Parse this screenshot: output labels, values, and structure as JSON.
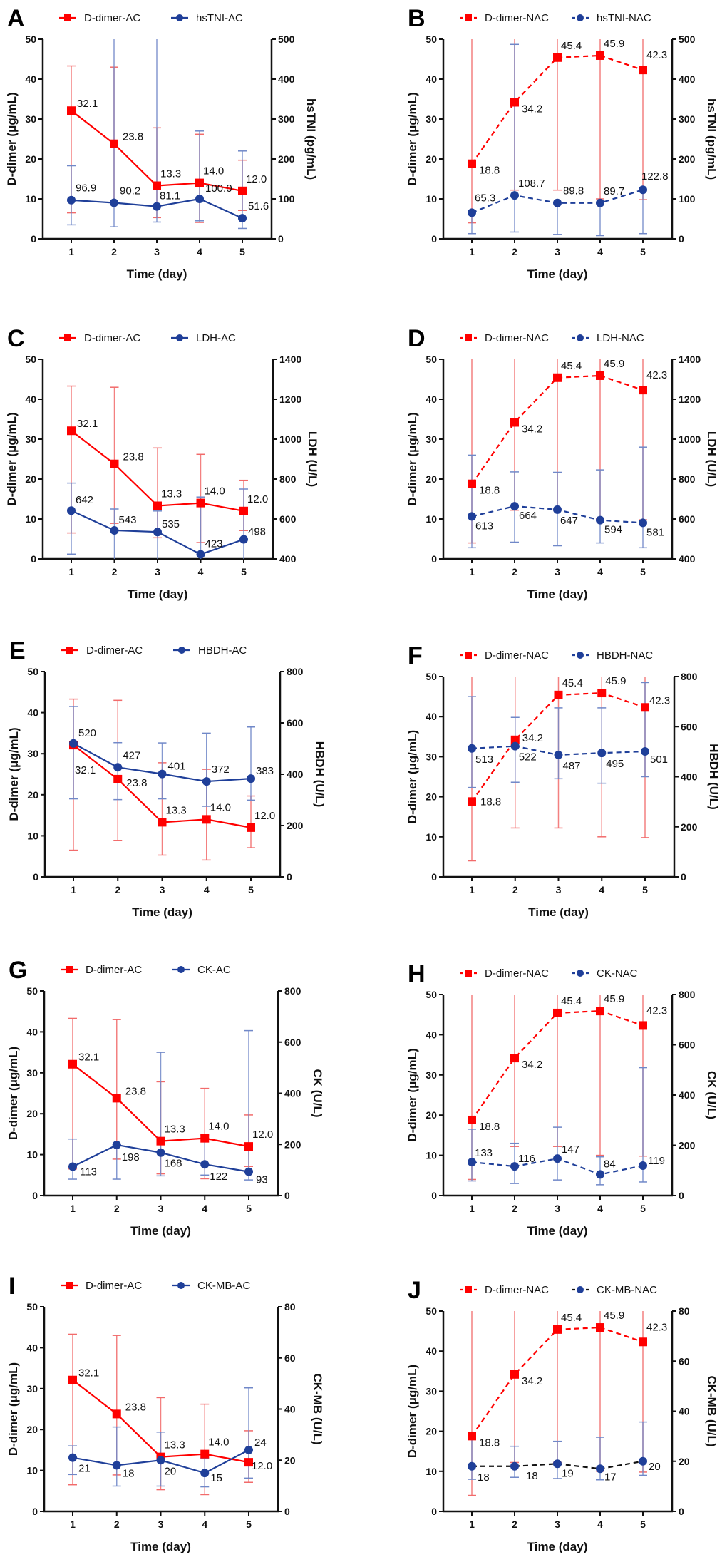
{
  "chart_data": [
    {
      "panel": "A",
      "type": "line",
      "x": [
        1,
        2,
        3,
        4,
        5
      ],
      "xlabel": "Time (day)",
      "ylabel_left": "D-dimer (μg/mL)",
      "ylabel_right": "hsTNI (pg/mL)",
      "ylim_left": [
        0,
        50
      ],
      "ylim_right": [
        0,
        500
      ],
      "yticks_left": [
        0,
        10,
        20,
        30,
        40,
        50
      ],
      "yticks_right": [
        0,
        100,
        200,
        300,
        400,
        500
      ],
      "legend": "top",
      "series": [
        {
          "name": "D-dimer-AC",
          "axis": "left",
          "style": "solid",
          "color": "#ff0000",
          "marker": "square",
          "values": [
            32.1,
            23.8,
            13.3,
            14.0,
            12.0
          ],
          "labels": [
            "32.1",
            "23.8",
            "13.3",
            "14.0",
            "12.0"
          ],
          "error_low": [
            6.5,
            8.9,
            5.3,
            4.1,
            7.1
          ],
          "error_high": [
            43.3,
            43.0,
            27.8,
            26.2,
            19.7
          ]
        },
        {
          "name": "hsTNI-AC",
          "axis": "right",
          "style": "solid",
          "color": "#1f3f99",
          "marker": "circle",
          "values": [
            96.9,
            90.2,
            81.1,
            100.0,
            51.6
          ],
          "labels": [
            "96.9",
            "90.2",
            "81.1",
            "100.0",
            "51.6"
          ],
          "error_low": [
            35,
            30,
            42,
            45,
            26
          ],
          "error_high": [
            183,
            500,
            500,
            270,
            220
          ]
        }
      ]
    },
    {
      "panel": "B",
      "type": "line",
      "x": [
        1,
        2,
        3,
        4,
        5
      ],
      "xlabel": "Time (day)",
      "ylabel_left": "D-dimer (μg/mL)",
      "ylabel_right": "hsTNI (pg/mL)",
      "ylim_left": [
        0,
        50
      ],
      "ylim_right": [
        0,
        500
      ],
      "yticks_left": [
        0,
        10,
        20,
        30,
        40,
        50
      ],
      "yticks_right": [
        0,
        100,
        200,
        300,
        400,
        500
      ],
      "legend": "top",
      "series": [
        {
          "name": "D-dimer-NAC",
          "axis": "left",
          "style": "dashed",
          "color": "#ff0000",
          "marker": "square",
          "values": [
            18.8,
            34.2,
            45.4,
            45.9,
            42.3
          ],
          "labels": [
            "18.8",
            "34.2",
            "45.4",
            "45.9",
            "42.3"
          ],
          "error_low": [
            4.0,
            12.2,
            12.2,
            10.0,
            9.8
          ],
          "error_high": [
            50,
            50,
            50,
            50,
            50
          ]
        },
        {
          "name": "hsTNI-NAC",
          "axis": "right",
          "style": "dashed",
          "color": "#1f3f99",
          "marker": "circle",
          "values": [
            65.3,
            108.7,
            89.8,
            89.7,
            122.8
          ],
          "labels": [
            "65.3",
            "108.7",
            "89.8",
            "89.7",
            "122.8"
          ],
          "error_low": [
            13,
            17,
            11,
            8,
            13
          ],
          "error_high": [
            null,
            487,
            null,
            null,
            null
          ]
        }
      ]
    },
    {
      "panel": "C",
      "type": "line",
      "x": [
        1,
        2,
        3,
        4,
        5
      ],
      "xlabel": "Time (day)",
      "ylabel_left": "D-dimer (μg/mL)",
      "ylabel_right": "LDH (U/L)",
      "ylim_left": [
        0,
        50
      ],
      "ylim_right": [
        400,
        1400
      ],
      "yticks_left": [
        0,
        10,
        20,
        30,
        40,
        50
      ],
      "yticks_right": [
        400,
        600,
        800,
        1000,
        1200,
        1400
      ],
      "legend": "top",
      "series": [
        {
          "name": "D-dimer-AC",
          "axis": "left",
          "style": "solid",
          "color": "#ff0000",
          "marker": "square",
          "values": [
            32.1,
            23.8,
            13.3,
            14.0,
            12.0
          ],
          "labels": [
            "32.1",
            "23.8",
            "13.3",
            "14.0",
            "12.0"
          ],
          "error_low": [
            6.5,
            8.9,
            5.3,
            4.1,
            7.1
          ],
          "error_high": [
            43.3,
            43.0,
            27.8,
            26.2,
            19.7
          ]
        },
        {
          "name": "LDH-AC",
          "axis": "right",
          "style": "solid",
          "color": "#1f3f99",
          "marker": "circle",
          "values": [
            642,
            543,
            535,
            423,
            498
          ],
          "labels": [
            "642",
            "543",
            "535",
            "423",
            "498"
          ],
          "error_low": [
            424,
            400,
            400,
            400,
            400
          ],
          "error_high": [
            780,
            650,
            640,
            710,
            750
          ]
        }
      ]
    },
    {
      "panel": "D",
      "type": "line",
      "x": [
        1,
        2,
        3,
        4,
        5
      ],
      "xlabel": "Time (day)",
      "ylabel_left": "D-dimer (μg/mL)",
      "ylabel_right": "LDH (U/L)",
      "ylim_left": [
        0,
        50
      ],
      "ylim_right": [
        400,
        1400
      ],
      "yticks_left": [
        0,
        10,
        20,
        30,
        40,
        50
      ],
      "yticks_right": [
        400,
        600,
        800,
        1000,
        1200,
        1400
      ],
      "legend": "top",
      "series": [
        {
          "name": "D-dimer-NAC",
          "axis": "left",
          "style": "dashed",
          "color": "#ff0000",
          "marker": "square",
          "values": [
            18.8,
            34.2,
            45.4,
            45.9,
            42.3
          ],
          "labels": [
            "18.8",
            "34.2",
            "45.4",
            "45.9",
            "42.3"
          ],
          "error_low": [
            4.0,
            12.2,
            12.2,
            10.0,
            9.8
          ],
          "error_high": [
            50,
            50,
            50,
            50,
            50
          ]
        },
        {
          "name": "LDH-NAC",
          "axis": "right",
          "style": "dashed",
          "color": "#1f3f99",
          "marker": "circle",
          "values": [
            613,
            664,
            647,
            594,
            581
          ],
          "labels": [
            "613",
            "664",
            "647",
            "594",
            "581"
          ],
          "error_low": [
            456,
            484,
            466,
            480,
            456
          ],
          "error_high": [
            920,
            836,
            834,
            846,
            960
          ]
        }
      ]
    },
    {
      "panel": "E",
      "type": "line",
      "x": [
        1,
        2,
        3,
        4,
        5
      ],
      "xlabel": "Time (day)",
      "ylabel_left": "D-dimer (μg/mL)",
      "ylabel_right": "HBDH (U/L)",
      "ylim_left": [
        0,
        50
      ],
      "ylim_right": [
        0,
        800
      ],
      "yticks_left": [
        0,
        10,
        20,
        30,
        40,
        50
      ],
      "yticks_right": [
        0,
        200,
        400,
        600,
        800
      ],
      "legend": "top",
      "series": [
        {
          "name": "D-dimer-AC",
          "axis": "left",
          "style": "solid",
          "color": "#ff0000",
          "marker": "square",
          "values": [
            32.1,
            23.8,
            13.3,
            14.0,
            12.0
          ],
          "labels": [
            "32.1",
            "23.8",
            "13.3",
            "14.0",
            "12.0"
          ],
          "error_low": [
            6.5,
            8.9,
            5.3,
            4.1,
            7.1
          ],
          "error_high": [
            43.3,
            43.0,
            27.8,
            26.2,
            19.7
          ]
        },
        {
          "name": "HBDH-AC",
          "axis": "right",
          "style": "solid",
          "color": "#1f3f99",
          "marker": "circle",
          "values": [
            520,
            427,
            401,
            372,
            383
          ],
          "labels": [
            "520",
            "427",
            "401",
            "372",
            "383"
          ],
          "error_low": [
            304,
            301,
            304,
            275,
            299
          ],
          "error_high": [
            664,
            523,
            522,
            560,
            584
          ]
        }
      ]
    },
    {
      "panel": "F",
      "type": "line",
      "x": [
        1,
        2,
        3,
        4,
        5
      ],
      "xlabel": "Time (day)",
      "ylabel_left": "D-dimer (μg/mL)",
      "ylabel_right": "HBDH (U/L)",
      "ylim_left": [
        0,
        50
      ],
      "ylim_right": [
        0,
        800
      ],
      "yticks_left": [
        0,
        10,
        20,
        30,
        40,
        50
      ],
      "yticks_right": [
        0,
        200,
        400,
        600,
        800
      ],
      "legend": "top",
      "series": [
        {
          "name": "D-dimer-NAC",
          "axis": "left",
          "style": "dashed",
          "color": "#ff0000",
          "marker": "square",
          "values": [
            18.8,
            34.2,
            45.4,
            45.9,
            42.3
          ],
          "labels": [
            "18.8",
            "34.2",
            "45.4",
            "45.9",
            "42.3"
          ],
          "error_low": [
            4.0,
            12.2,
            12.2,
            10.0,
            9.8
          ],
          "error_high": [
            50,
            50,
            50,
            50,
            50
          ]
        },
        {
          "name": "HBDH-NAC",
          "axis": "right",
          "style": "dashed",
          "color": "#1f3f99",
          "marker": "circle",
          "values": [
            513,
            522,
            487,
            495,
            501
          ],
          "labels": [
            "513",
            "522",
            "487",
            "495",
            "501"
          ],
          "error_low": [
            357,
            378,
            392,
            374,
            400
          ],
          "error_high": [
            720,
            637,
            675,
            675,
            776
          ]
        }
      ]
    },
    {
      "panel": "G",
      "type": "line",
      "x": [
        1,
        2,
        3,
        4,
        5
      ],
      "xlabel": "Time (day)",
      "ylabel_left": "D-dimer (μg/mL)",
      "ylabel_right": "CK (U/L)",
      "ylim_left": [
        0,
        50
      ],
      "ylim_right": [
        0,
        800
      ],
      "yticks_left": [
        0,
        10,
        20,
        30,
        40,
        50
      ],
      "yticks_right": [
        0,
        200,
        400,
        600,
        800
      ],
      "legend": "top",
      "series": [
        {
          "name": "D-dimer-AC",
          "axis": "left",
          "style": "solid",
          "color": "#ff0000",
          "marker": "square",
          "values": [
            32.1,
            23.8,
            13.3,
            14.0,
            12.0
          ],
          "labels": [
            "32.1",
            "23.8",
            "13.3",
            "14.0",
            "12.0"
          ],
          "error_low": [
            6.5,
            8.9,
            5.3,
            4.1,
            7.1
          ],
          "error_high": [
            43.3,
            43.0,
            27.8,
            26.2,
            19.7
          ]
        },
        {
          "name": "CK-AC",
          "axis": "right",
          "style": "solid",
          "color": "#1f3f99",
          "marker": "circle",
          "values": [
            113,
            198,
            168,
            122,
            93
          ],
          "labels": [
            "113",
            "198",
            "168",
            "122",
            "93"
          ],
          "error_low": [
            64,
            64,
            77,
            80,
            61
          ],
          "error_high": [
            221,
            200,
            560,
            237,
            645
          ]
        }
      ]
    },
    {
      "panel": "H",
      "type": "line",
      "x": [
        1,
        2,
        3,
        4,
        5
      ],
      "xlabel": "Time (day)",
      "ylabel_left": "D-dimer (μg/mL)",
      "ylabel_right": "CK (U/L)",
      "ylim_left": [
        0,
        50
      ],
      "ylim_right": [
        0,
        800
      ],
      "yticks_left": [
        0,
        10,
        20,
        30,
        40,
        50
      ],
      "yticks_right": [
        0,
        200,
        400,
        600,
        800
      ],
      "legend": "top",
      "series": [
        {
          "name": "D-dimer-NAC",
          "axis": "left",
          "style": "dashed",
          "color": "#ff0000",
          "marker": "square",
          "values": [
            18.8,
            34.2,
            45.4,
            45.9,
            42.3
          ],
          "labels": [
            "18.8",
            "34.2",
            "45.4",
            "45.9",
            "42.3"
          ],
          "error_low": [
            4.0,
            12.2,
            12.2,
            10.0,
            9.8
          ],
          "error_high": [
            50,
            50,
            50,
            50,
            50
          ]
        },
        {
          "name": "CK-NAC",
          "axis": "right",
          "style": "dashed",
          "color": "#1f3f99",
          "marker": "circle",
          "values": [
            133,
            116,
            147,
            84,
            119
          ],
          "labels": [
            "133",
            "116",
            "147",
            "84",
            "119"
          ],
          "error_low": [
            58,
            48,
            62,
            43,
            54
          ],
          "error_high": [
            264,
            208,
            272,
            154,
            509
          ]
        }
      ]
    },
    {
      "panel": "I",
      "type": "line",
      "x": [
        1,
        2,
        3,
        4,
        5
      ],
      "xlabel": "Time (day)",
      "ylabel_left": "D-dimer (μg/mL)",
      "ylabel_right": "CK-MB (U/L)",
      "ylim_left": [
        0,
        50
      ],
      "ylim_right": [
        0,
        80
      ],
      "yticks_left": [
        0,
        10,
        20,
        30,
        40,
        50
      ],
      "yticks_right": [
        0,
        20,
        40,
        60,
        80
      ],
      "legend": "top",
      "series": [
        {
          "name": "D-dimer-AC",
          "axis": "left",
          "style": "solid",
          "color": "#ff0000",
          "marker": "square",
          "values": [
            32.1,
            23.8,
            13.3,
            14.0,
            12.0
          ],
          "labels": [
            "32.1",
            "23.8",
            "13.3",
            "14.0",
            "12.0"
          ],
          "error_low": [
            6.5,
            8.9,
            5.3,
            4.1,
            7.1
          ],
          "error_high": [
            43.3,
            43.0,
            27.8,
            26.2,
            19.7
          ]
        },
        {
          "name": "CK-MB-AC",
          "axis": "right",
          "style": "solid",
          "color": "#1f3f99",
          "marker": "circle",
          "values": [
            21,
            18,
            20,
            15,
            24
          ],
          "labels": [
            "21",
            "18",
            "20",
            "15",
            "24"
          ],
          "error_low": [
            14.4,
            9.9,
            9.9,
            9.6,
            13.0
          ],
          "error_high": [
            25.6,
            33.0,
            31.0,
            20.8,
            48.3
          ]
        }
      ]
    },
    {
      "panel": "J",
      "type": "line",
      "x": [
        1,
        2,
        3,
        4,
        5
      ],
      "xlabel": "Time (day)",
      "ylabel_left": "D-dimer (μg/mL)",
      "ylabel_right": "CK-MB (U/L)",
      "ylim_left": [
        0,
        50
      ],
      "ylim_right": [
        0,
        80
      ],
      "yticks_left": [
        0,
        10,
        20,
        30,
        40,
        50
      ],
      "yticks_right": [
        0,
        20,
        40,
        60,
        80
      ],
      "legend": "top",
      "series": [
        {
          "name": "D-dimer-NAC",
          "axis": "left",
          "style": "dashed",
          "color": "#ff0000",
          "marker": "square",
          "values": [
            18.8,
            34.2,
            45.4,
            45.9,
            42.3
          ],
          "labels": [
            "18.8",
            "34.2",
            "45.4",
            "45.9",
            "42.3"
          ],
          "error_low": [
            4.0,
            12.2,
            12.2,
            10.0,
            9.8
          ],
          "error_high": [
            50,
            50,
            50,
            50,
            50
          ]
        },
        {
          "name": "CK-MB-NAC",
          "axis": "right",
          "style": "dashed",
          "color": "#111111",
          "marker": "circle",
          "marker_color": "#1f3f99",
          "values": [
            18,
            18,
            19,
            17,
            20
          ],
          "labels": [
            "18",
            "18",
            "19",
            "17",
            "20"
          ],
          "error_low": [
            12.8,
            13.6,
            13.1,
            12.6,
            14.4
          ],
          "error_high": [
            28.8,
            26.0,
            28.0,
            29.6,
            35.7
          ]
        }
      ]
    }
  ]
}
